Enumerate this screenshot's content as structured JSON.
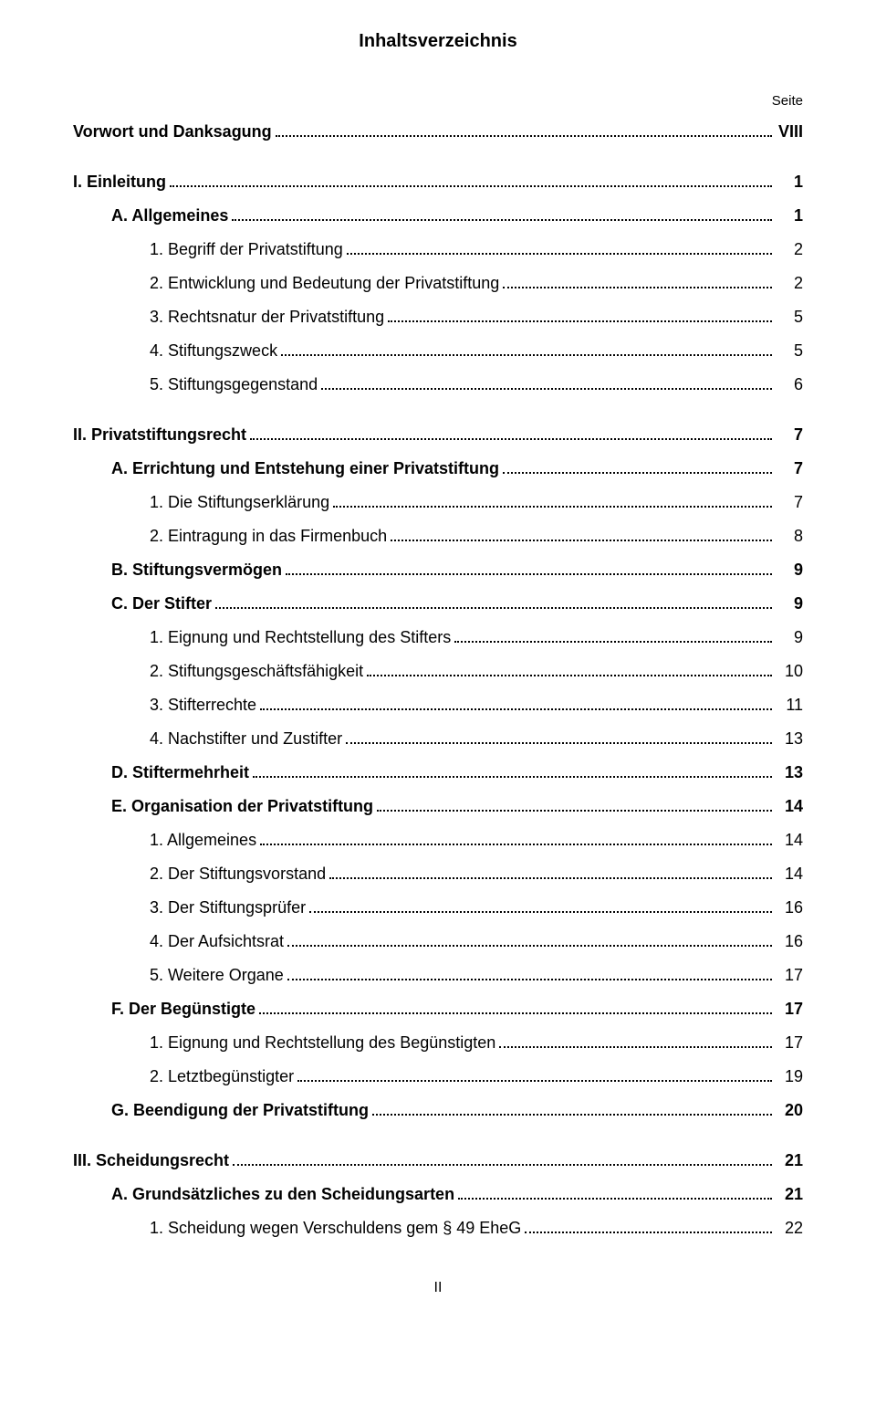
{
  "title": "Inhaltsverzeichnis",
  "page_label": "Seite",
  "footer": "II",
  "entries": [
    {
      "label": "Vorwort und Danksagung",
      "page": "VIII",
      "bold": true,
      "indent": 0,
      "gap": false
    },
    {
      "label": "I. Einleitung",
      "page": "1",
      "bold": true,
      "indent": 0,
      "gap": true
    },
    {
      "label": "A. Allgemeines",
      "page": "1",
      "bold": true,
      "indent": 1,
      "gap": false
    },
    {
      "label": "1. Begriff der Privatstiftung",
      "page": "2",
      "bold": false,
      "indent": 2,
      "gap": false
    },
    {
      "label": "2. Entwicklung und Bedeutung der Privatstiftung",
      "page": "2",
      "bold": false,
      "indent": 2,
      "gap": false
    },
    {
      "label": "3. Rechtsnatur der Privatstiftung",
      "page": "5",
      "bold": false,
      "indent": 2,
      "gap": false
    },
    {
      "label": "4. Stiftungszweck",
      "page": "5",
      "bold": false,
      "indent": 2,
      "gap": false
    },
    {
      "label": "5. Stiftungsgegenstand",
      "page": "6",
      "bold": false,
      "indent": 2,
      "gap": false
    },
    {
      "label": "II. Privatstiftungsrecht",
      "page": "7",
      "bold": true,
      "indent": 0,
      "gap": true
    },
    {
      "label": "A. Errichtung und Entstehung einer Privatstiftung",
      "page": "7",
      "bold": true,
      "indent": 1,
      "gap": false
    },
    {
      "label": "1. Die Stiftungserklärung",
      "page": "7",
      "bold": false,
      "indent": 2,
      "gap": false
    },
    {
      "label": "2. Eintragung in das Firmenbuch",
      "page": "8",
      "bold": false,
      "indent": 2,
      "gap": false
    },
    {
      "label": "B. Stiftungsvermögen",
      "page": "9",
      "bold": true,
      "indent": 1,
      "gap": false
    },
    {
      "label": "C. Der Stifter",
      "page": "9",
      "bold": true,
      "indent": 1,
      "gap": false
    },
    {
      "label": "1. Eignung und Rechtstellung des Stifters",
      "page": "9",
      "bold": false,
      "indent": 2,
      "gap": false
    },
    {
      "label": "2. Stiftungsgeschäftsfähigkeit",
      "page": "10",
      "bold": false,
      "indent": 2,
      "gap": false
    },
    {
      "label": "3. Stifterrechte",
      "page": "11",
      "bold": false,
      "indent": 2,
      "gap": false
    },
    {
      "label": "4. Nachstifter und Zustifter",
      "page": "13",
      "bold": false,
      "indent": 2,
      "gap": false
    },
    {
      "label": "D. Stiftermehrheit",
      "page": "13",
      "bold": true,
      "indent": 1,
      "gap": false
    },
    {
      "label": "E. Organisation der Privatstiftung",
      "page": "14",
      "bold": true,
      "indent": 1,
      "gap": false
    },
    {
      "label": "1. Allgemeines",
      "page": "14",
      "bold": false,
      "indent": 2,
      "gap": false
    },
    {
      "label": "2. Der Stiftungsvorstand",
      "page": "14",
      "bold": false,
      "indent": 2,
      "gap": false
    },
    {
      "label": "3. Der Stiftungsprüfer",
      "page": "16",
      "bold": false,
      "indent": 2,
      "gap": false
    },
    {
      "label": "4. Der Aufsichtsrat",
      "page": "16",
      "bold": false,
      "indent": 2,
      "gap": false
    },
    {
      "label": "5. Weitere Organe",
      "page": "17",
      "bold": false,
      "indent": 2,
      "gap": false
    },
    {
      "label": "F. Der Begünstigte",
      "page": "17",
      "bold": true,
      "indent": 1,
      "gap": false
    },
    {
      "label": "1. Eignung und Rechtstellung des Begünstigten",
      "page": "17",
      "bold": false,
      "indent": 2,
      "gap": false
    },
    {
      "label": "2. Letztbegünstigter",
      "page": "19",
      "bold": false,
      "indent": 2,
      "gap": false
    },
    {
      "label": "G. Beendigung der Privatstiftung",
      "page": "20",
      "bold": true,
      "indent": 1,
      "gap": false
    },
    {
      "label": "III. Scheidungsrecht",
      "page": "21",
      "bold": true,
      "indent": 0,
      "gap": true
    },
    {
      "label": "A. Grundsätzliches zu den Scheidungsarten",
      "page": "21",
      "bold": true,
      "indent": 1,
      "gap": false
    },
    {
      "label": "1. Scheidung wegen Verschuldens gem § 49 EheG",
      "page": "22",
      "bold": false,
      "indent": 2,
      "gap": false
    }
  ]
}
